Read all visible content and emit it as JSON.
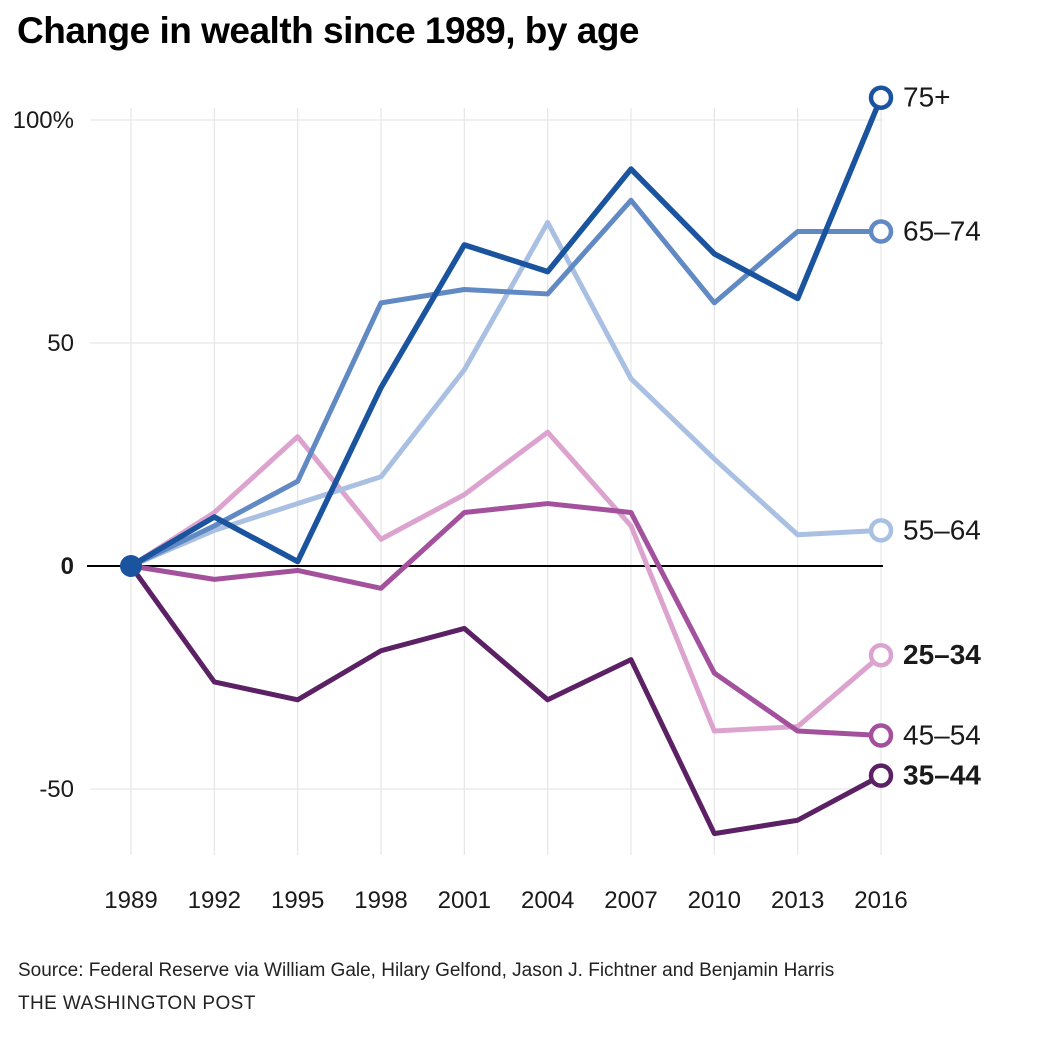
{
  "page": {
    "title": "Change in wealth since 1989, by age",
    "source_line": "Source: Federal Reserve via William Gale, Hilary Gelfond, Jason J. Fichtner and Benjamin Harris",
    "credit_line": "THE WASHINGTON POST"
  },
  "chart_data": {
    "type": "line",
    "title": "Change in wealth since 1989, by age",
    "xlabel": "",
    "ylabel": "",
    "x": [
      1989,
      1992,
      1995,
      1998,
      2001,
      2004,
      2007,
      2010,
      2013,
      2016
    ],
    "x_tick_labels": [
      "1989",
      "1992",
      "1995",
      "1998",
      "2001",
      "2004",
      "2007",
      "2010",
      "2013",
      "2016"
    ],
    "y_ticks": [
      {
        "label": "100%",
        "value": 100,
        "bold": false
      },
      {
        "label": "50",
        "value": 50,
        "bold": false
      },
      {
        "label": "0",
        "value": 0,
        "bold": true
      },
      {
        "label": "-50",
        "value": -50,
        "bold": false
      }
    ],
    "ylim": [
      -65,
      110
    ],
    "grid": true,
    "grid_color": "#e7e7e7",
    "zero_line_color": "#000000",
    "legend_position": "right-edge-labels",
    "start_marker": {
      "year": 1989,
      "value": 0,
      "color": "#1a539e"
    },
    "series": [
      {
        "label": "25–34",
        "bold": true,
        "color": "#dda3cf",
        "width": 5,
        "values": [
          0,
          12,
          29,
          6,
          16,
          30,
          9,
          -37,
          -36,
          -20
        ]
      },
      {
        "label": "45–54",
        "bold": false,
        "color": "#a3519c",
        "width": 5,
        "values": [
          0,
          -3,
          -1,
          -5,
          12,
          14,
          12,
          -24,
          -37,
          -38
        ]
      },
      {
        "label": "35–44",
        "bold": true,
        "color": "#5b2164",
        "width": 5,
        "values": [
          0,
          -26,
          -30,
          -19,
          -14,
          -30,
          -21,
          -60,
          -57,
          -47
        ]
      },
      {
        "label": "55–64",
        "bold": false,
        "color": "#a9c0e2",
        "width": 5,
        "values": [
          0,
          8,
          14,
          20,
          44,
          77,
          42,
          24,
          7,
          8
        ]
      },
      {
        "label": "65–74",
        "bold": false,
        "color": "#6189c4",
        "width": 5,
        "values": [
          0,
          9,
          19,
          59,
          62,
          61,
          82,
          59,
          75,
          75
        ]
      },
      {
        "label": "75+",
        "bold": false,
        "color": "#1a539e",
        "width": 5.5,
        "values": [
          0,
          11,
          1,
          40,
          72,
          66,
          89,
          70,
          60,
          105
        ]
      }
    ]
  }
}
